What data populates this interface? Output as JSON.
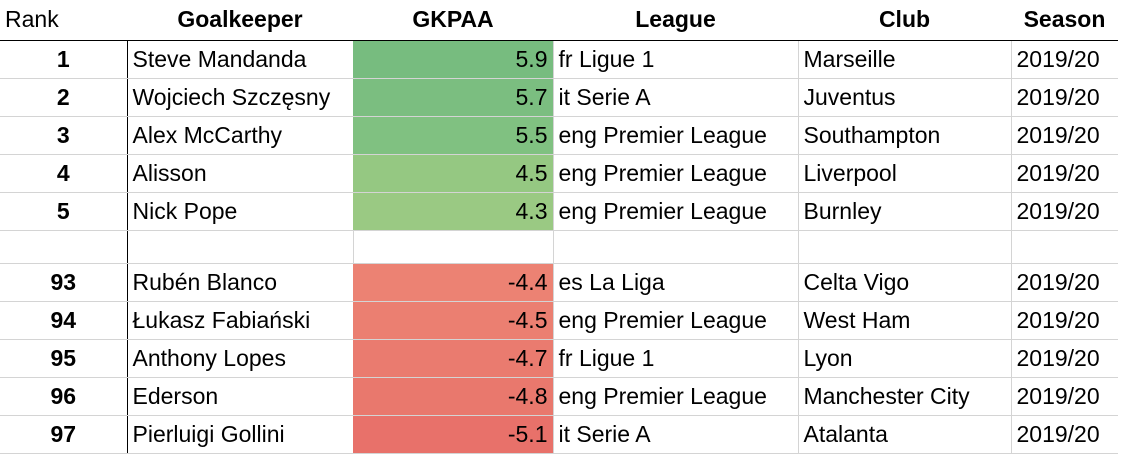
{
  "headers": {
    "rank": "Rank",
    "goalkeeper": "Goalkeeper",
    "gkpaa": "GKPAA",
    "league": "League",
    "club": "Club",
    "season": "Season"
  },
  "top_rows": [
    {
      "rank": "1",
      "goalkeeper": "Steve Mandanda",
      "gkpaa": "5.9",
      "league": "fr Ligue 1",
      "club": "Marseille",
      "season": "2019/20",
      "fill": "#77bc7f"
    },
    {
      "rank": "2",
      "goalkeeper": "Wojciech Szczęsny",
      "gkpaa": "5.7",
      "league": "it Serie A",
      "club": "Juventus",
      "season": "2019/20",
      "fill": "#7bbe80"
    },
    {
      "rank": "3",
      "goalkeeper": "Alex McCarthy",
      "gkpaa": "5.5",
      "league": "eng Premier League",
      "club": "Southampton",
      "season": "2019/20",
      "fill": "#80c181"
    },
    {
      "rank": "4",
      "goalkeeper": "Alisson",
      "gkpaa": "4.5",
      "league": "eng Premier League",
      "club": "Liverpool",
      "season": "2019/20",
      "fill": "#95c882"
    },
    {
      "rank": "5",
      "goalkeeper": "Nick Pope",
      "gkpaa": "4.3",
      "league": "eng Premier League",
      "club": "Burnley",
      "season": "2019/20",
      "fill": "#9ac983"
    }
  ],
  "bottom_rows": [
    {
      "rank": "93",
      "goalkeeper": "Rubén Blanco",
      "gkpaa": "-4.4",
      "league": "es La Liga",
      "club": "Celta Vigo",
      "season": "2019/20",
      "fill": "#ec8273"
    },
    {
      "rank": "94",
      "goalkeeper": "Łukasz Fabiański",
      "gkpaa": "-4.5",
      "league": "eng Premier League",
      "club": "West Ham",
      "season": "2019/20",
      "fill": "#eb7f71"
    },
    {
      "rank": "95",
      "goalkeeper": "Anthony Lopes",
      "gkpaa": "-4.7",
      "league": "fr Ligue 1",
      "club": "Lyon",
      "season": "2019/20",
      "fill": "#ea7b6f"
    },
    {
      "rank": "96",
      "goalkeeper": "Ederson",
      "gkpaa": "-4.8",
      "league": "eng Premier League",
      "club": "Manchester City",
      "season": "2019/20",
      "fill": "#e9786d"
    },
    {
      "rank": "97",
      "goalkeeper": "Pierluigi Gollini",
      "gkpaa": "-5.1",
      "league": "it Serie A",
      "club": "Atalanta",
      "season": "2019/20",
      "fill": "#e8716a"
    }
  ]
}
